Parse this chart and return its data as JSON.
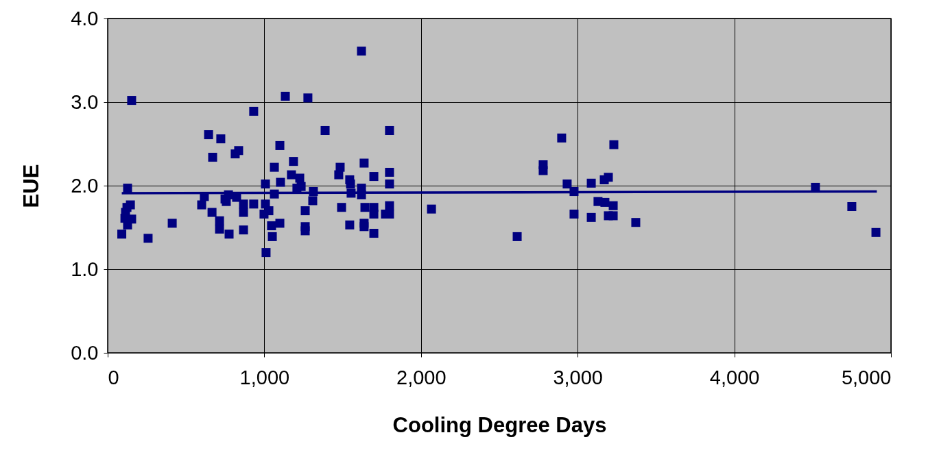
{
  "chart_data": {
    "type": "scatter",
    "xlabel": "Cooling Degree Days",
    "ylabel": "EUE",
    "xlim": [
      0,
      5000
    ],
    "ylim": [
      0,
      4
    ],
    "xticks": [
      {
        "value": 0,
        "label": "0"
      },
      {
        "value": 1000,
        "label": "1,000"
      },
      {
        "value": 2000,
        "label": "2,000"
      },
      {
        "value": 3000,
        "label": "3,000"
      },
      {
        "value": 4000,
        "label": "4,000"
      },
      {
        "value": 5000,
        "label": "5,000"
      }
    ],
    "yticks": [
      {
        "value": 0,
        "label": "0.0"
      },
      {
        "value": 1,
        "label": "1.0"
      },
      {
        "value": 2,
        "label": "2.0"
      },
      {
        "value": 3,
        "label": "3.0"
      },
      {
        "value": 4,
        "label": "4.0"
      }
    ],
    "grid": true,
    "series": [
      {
        "marker": "square",
        "color": "#000080",
        "x": [
          90,
          110,
          114,
          123,
          127,
          127,
          145,
          153,
          153,
          258,
          412,
          600,
          617,
          644,
          666,
          670,
          714,
          714,
          722,
          749,
          757,
          771,
          775,
          814,
          836,
          823,
          867,
          867,
          867,
          932,
          932,
          998,
          1007,
          1007,
          1011,
          1029,
          1046,
          1051,
          1064,
          1064,
          1099,
          1099,
          1103,
          1134,
          1173,
          1186,
          1208,
          1226,
          1235,
          1261,
          1261,
          1261,
          1278,
          1313,
          1309,
          1388,
          1475,
          1484,
          1493,
          1545,
          1550,
          1554,
          1545,
          1620,
          1620,
          1620,
          1637,
          1642,
          1637,
          1637,
          1699,
          1699,
          1699,
          1699,
          1773,
          1799,
          1799,
          1799,
          1799,
          1799,
          2067,
          2614,
          2780,
          2780,
          2898,
          2933,
          2977,
          2977,
          3087,
          3087,
          3130,
          3170,
          3174,
          3196,
          3196,
          3227,
          3227,
          3231,
          3371,
          4518,
          4750,
          4904
        ],
        "values": [
          1.42,
          1.61,
          1.68,
          1.74,
          1.97,
          1.53,
          1.77,
          1.6,
          3.02,
          1.37,
          1.55,
          1.77,
          1.87,
          2.61,
          1.68,
          2.34,
          1.48,
          1.58,
          2.56,
          1.84,
          1.81,
          1.89,
          1.42,
          2.38,
          2.42,
          1.86,
          1.78,
          1.68,
          1.47,
          2.89,
          1.78,
          1.66,
          2.02,
          1.78,
          1.2,
          1.7,
          1.52,
          1.39,
          2.22,
          1.9,
          2.48,
          1.55,
          2.04,
          3.07,
          2.13,
          2.29,
          1.97,
          2.09,
          1.99,
          1.7,
          1.51,
          1.46,
          3.05,
          1.93,
          1.82,
          2.66,
          2.13,
          2.22,
          1.74,
          2.07,
          2.02,
          1.91,
          1.53,
          3.61,
          1.97,
          1.89,
          2.27,
          1.74,
          1.55,
          1.51,
          2.11,
          1.74,
          1.66,
          1.43,
          1.66,
          2.66,
          2.16,
          2.02,
          1.76,
          1.66,
          1.72,
          1.39,
          2.25,
          2.18,
          2.57,
          2.02,
          1.93,
          1.66,
          2.03,
          1.62,
          1.81,
          2.07,
          1.8,
          2.1,
          1.64,
          1.76,
          1.64,
          2.49,
          1.56,
          1.98,
          1.75,
          1.44
        ]
      },
      {
        "type": "line",
        "color": "#000080",
        "x": [
          90,
          4910
        ],
        "values": [
          1.91,
          1.93
        ]
      }
    ]
  }
}
